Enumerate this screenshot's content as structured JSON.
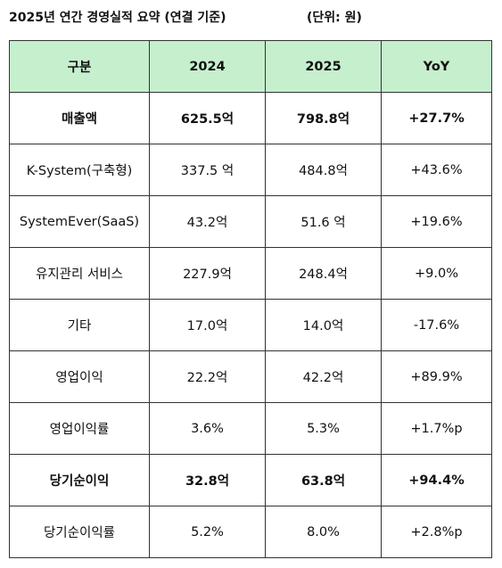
{
  "header": {
    "title": "2025년 연간 경영실적 요약 (연결 기준)",
    "unit": "(단위: 원)"
  },
  "table": {
    "columns": [
      "구분",
      "2024",
      "2025",
      "YoY"
    ],
    "rows": [
      {
        "label": "매출액",
        "y2024": "625.5억",
        "y2025": "798.8억",
        "yoy": "+27.7%",
        "bold": true
      },
      {
        "label": "K-System(구축형)",
        "y2024": "337.5 억",
        "y2025": "484.8억",
        "yoy": "+43.6%",
        "bold": false
      },
      {
        "label": "SystemEver(SaaS)",
        "y2024": "43.2억",
        "y2025": "51.6 억",
        "yoy": "+19.6%",
        "bold": false
      },
      {
        "label": "유지관리 서비스",
        "y2024": "227.9억",
        "y2025": "248.4억",
        "yoy": "+9.0%",
        "bold": false
      },
      {
        "label": "기타",
        "y2024": "17.0억",
        "y2025": "14.0억",
        "yoy": "-17.6%",
        "bold": false
      },
      {
        "label": "영업이익",
        "y2024": "22.2억",
        "y2025": "42.2억",
        "yoy": "+89.9%",
        "bold": false
      },
      {
        "label": "영업이익률",
        "y2024": "3.6%",
        "y2025": "5.3%",
        "yoy": "+1.7%p",
        "bold": false
      },
      {
        "label": "당기순이익",
        "y2024": "32.8억",
        "y2025": "63.8억",
        "yoy": "+94.4%",
        "bold": true
      },
      {
        "label": "당기순이익률",
        "y2024": "5.2%",
        "y2025": "8.0%",
        "yoy": "+2.8%p",
        "bold": false
      }
    ]
  },
  "colors": {
    "header_bg": "#c6efce",
    "border": "#333333",
    "text": "#111111"
  }
}
